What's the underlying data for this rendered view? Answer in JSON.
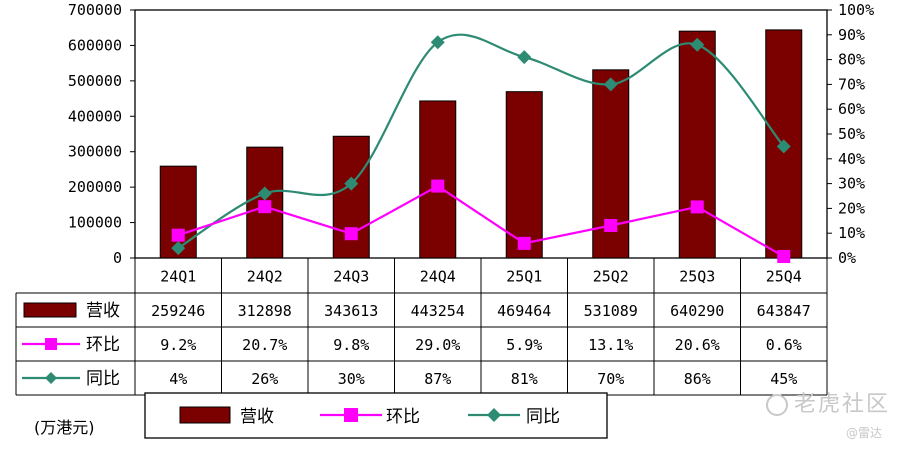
{
  "chart_data": {
    "type": "bar",
    "categories": [
      "24Q1",
      "24Q2",
      "24Q3",
      "24Q4",
      "25Q1",
      "25Q2",
      "25Q3",
      "25Q4"
    ],
    "series": [
      {
        "name": "营收",
        "type": "bar",
        "axis": "left",
        "values": [
          259246,
          312898,
          343613,
          443254,
          469464,
          531089,
          640290,
          643847
        ],
        "color": "#7b0000"
      },
      {
        "name": "环比",
        "type": "line",
        "axis": "right",
        "values": [
          9.2,
          20.7,
          9.8,
          29.0,
          5.9,
          13.1,
          20.6,
          0.6
        ],
        "color": "#ff00ff"
      },
      {
        "name": "同比",
        "type": "line",
        "axis": "right",
        "values": [
          4,
          26,
          30,
          87,
          81,
          70,
          86,
          45
        ],
        "color": "#2e8b73"
      }
    ],
    "table_rows": [
      {
        "label": "营收",
        "cells": [
          "259246",
          "312898",
          "343613",
          "443254",
          "469464",
          "531089",
          "640290",
          "643847"
        ]
      },
      {
        "label": "环比",
        "cells": [
          "9.2%",
          "20.7%",
          "9.8%",
          "29.0%",
          "5.9%",
          "13.1%",
          "20.6%",
          "0.6%"
        ]
      },
      {
        "label": "同比",
        "cells": [
          "4%",
          "26%",
          "30%",
          "87%",
          "81%",
          "70%",
          "86%",
          "45%"
        ]
      }
    ],
    "y_left": {
      "range": [
        0,
        700000
      ],
      "ticks": [
        "0",
        "100000",
        "200000",
        "300000",
        "400000",
        "500000",
        "600000",
        "700000"
      ]
    },
    "y_right": {
      "range": [
        0,
        100
      ],
      "ticks": [
        "0%",
        "10%",
        "20%",
        "30%",
        "40%",
        "50%",
        "60%",
        "70%",
        "80%",
        "90%",
        "100%"
      ]
    },
    "legend": [
      "营收",
      "环比",
      "同比"
    ],
    "legend_position": "bottom",
    "unit_note": "(万港元)",
    "grid": false
  },
  "watermark": {
    "brand": "老虎社区",
    "author": "@雷达"
  }
}
